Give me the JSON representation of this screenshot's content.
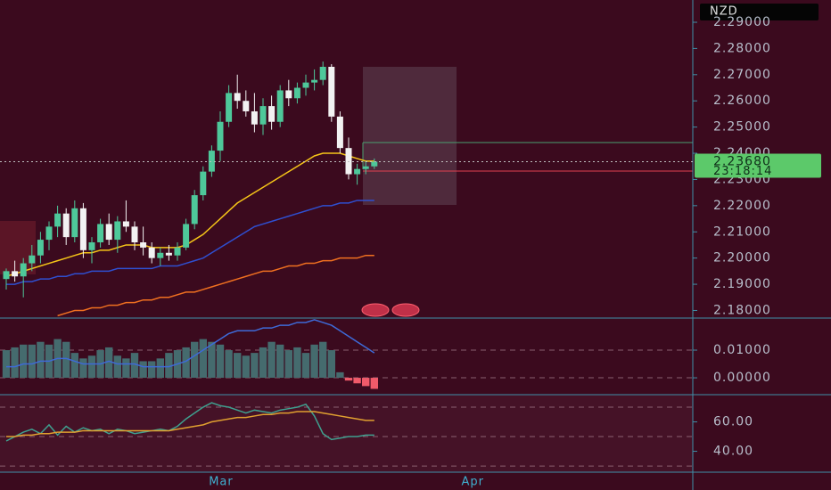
{
  "symbol": "NZD",
  "chart_data": [
    {
      "type": "candlestick",
      "categories": [
        null,
        null,
        null,
        null,
        null,
        null,
        null,
        null,
        null,
        null,
        null,
        null,
        null,
        null,
        null,
        null,
        null,
        null,
        null,
        null,
        null,
        null,
        null,
        null,
        null,
        null,
        null,
        null,
        null,
        null,
        null,
        null,
        null,
        null,
        null,
        null,
        null,
        null,
        null,
        null,
        null,
        null,
        null,
        null
      ],
      "xticks": [
        {
          "value": 25.1,
          "label": "Mar"
        },
        {
          "value": 54.5,
          "label": "Apr"
        }
      ],
      "open": [
        2.192,
        2.195,
        2.193,
        2.198,
        2.201,
        2.207,
        2.212,
        2.217,
        2.208,
        2.219,
        2.203,
        2.206,
        2.213,
        2.207,
        2.214,
        2.212,
        2.206,
        2.204,
        2.2,
        2.202,
        2.201,
        2.204,
        2.213,
        2.224,
        2.233,
        2.241,
        2.252,
        2.263,
        2.26,
        2.256,
        2.251,
        2.258,
        2.252,
        2.264,
        2.261,
        2.265,
        2.267,
        2.268,
        2.273,
        2.254,
        2.242,
        2.232,
        2.234,
        2.235
      ],
      "high": [
        2.196,
        2.199,
        2.2,
        2.205,
        2.21,
        2.214,
        2.22,
        2.219,
        2.222,
        2.221,
        2.208,
        2.215,
        2.217,
        2.216,
        2.222,
        2.214,
        2.212,
        2.206,
        2.204,
        2.205,
        2.206,
        2.215,
        2.226,
        2.235,
        2.243,
        2.256,
        2.266,
        2.27,
        2.264,
        2.263,
        2.261,
        2.262,
        2.266,
        2.268,
        2.267,
        2.27,
        2.272,
        2.275,
        2.274,
        2.256,
        2.246,
        2.236,
        2.237,
        2.238
      ],
      "low": [
        2.188,
        2.191,
        2.185,
        2.195,
        2.198,
        2.203,
        2.208,
        2.205,
        2.206,
        2.2,
        2.198,
        2.204,
        2.205,
        2.202,
        2.21,
        2.203,
        2.201,
        2.198,
        2.197,
        2.199,
        2.199,
        2.203,
        2.211,
        2.222,
        2.231,
        2.237,
        2.25,
        2.257,
        2.254,
        2.248,
        2.247,
        2.249,
        2.25,
        2.258,
        2.259,
        2.262,
        2.264,
        2.266,
        2.252,
        2.24,
        2.23,
        2.228,
        2.232,
        2.234
      ],
      "close": [
        2.195,
        2.193,
        2.198,
        2.201,
        2.207,
        2.212,
        2.217,
        2.208,
        2.219,
        2.203,
        2.206,
        2.213,
        2.207,
        2.214,
        2.212,
        2.206,
        2.204,
        2.2,
        2.202,
        2.201,
        2.204,
        2.213,
        2.224,
        2.233,
        2.241,
        2.252,
        2.263,
        2.26,
        2.256,
        2.251,
        2.258,
        2.252,
        2.264,
        2.261,
        2.265,
        2.267,
        2.268,
        2.273,
        2.254,
        2.242,
        2.232,
        2.234,
        2.235,
        2.2368
      ],
      "up_color": "#4ec89a",
      "down_color": "#f2f2f2",
      "series": [
        {
          "color": "#f5c518",
          "values": [
            2.193,
            2.194,
            2.195,
            2.196,
            2.197,
            2.198,
            2.199,
            2.2,
            2.201,
            2.202,
            2.202,
            2.203,
            2.203,
            2.204,
            2.205,
            2.205,
            2.205,
            2.204,
            2.204,
            2.204,
            2.204,
            2.205,
            2.207,
            2.209,
            2.212,
            2.215,
            2.218,
            2.221,
            2.223,
            2.225,
            2.227,
            2.229,
            2.231,
            2.233,
            2.235,
            2.237,
            2.239,
            2.24,
            2.24,
            2.24,
            2.239,
            2.238,
            2.237,
            2.237
          ]
        },
        {
          "color": "#2f4fd0",
          "values": [
            2.19,
            2.19,
            2.191,
            2.191,
            2.192,
            2.192,
            2.193,
            2.193,
            2.194,
            2.194,
            2.195,
            2.195,
            2.195,
            2.196,
            2.196,
            2.196,
            2.196,
            2.196,
            2.197,
            2.197,
            2.197,
            2.198,
            2.199,
            2.2,
            2.202,
            2.204,
            2.206,
            2.208,
            2.21,
            2.212,
            2.213,
            2.214,
            2.215,
            2.216,
            2.217,
            2.218,
            2.219,
            2.22,
            2.22,
            2.221,
            2.221,
            2.222,
            2.222,
            2.222
          ]
        },
        {
          "color": "#f07020",
          "values": [
            null,
            null,
            null,
            null,
            null,
            null,
            2.178,
            2.179,
            2.18,
            2.18,
            2.181,
            2.181,
            2.182,
            2.182,
            2.183,
            2.183,
            2.184,
            2.184,
            2.185,
            2.185,
            2.186,
            2.187,
            2.187,
            2.188,
            2.189,
            2.19,
            2.191,
            2.192,
            2.193,
            2.194,
            2.195,
            2.195,
            2.196,
            2.197,
            2.197,
            2.198,
            2.198,
            2.199,
            2.199,
            2.2,
            2.2,
            2.2,
            2.201,
            2.201
          ]
        }
      ],
      "ylim": [
        2.1771,
        2.2985
      ],
      "yticks": [
        {
          "value": 2.29,
          "label": "2.29000"
        },
        {
          "value": 2.28,
          "label": "2.28000"
        },
        {
          "value": 2.27,
          "label": "2.27000"
        },
        {
          "value": 2.26,
          "label": "2.26000"
        },
        {
          "value": 2.25,
          "label": "2.25000"
        },
        {
          "value": 2.24,
          "label": "2.24000"
        },
        {
          "value": 2.23,
          "label": "2.23000"
        },
        {
          "value": 2.22,
          "label": "2.22000"
        },
        {
          "value": 2.21,
          "label": "2.21000"
        },
        {
          "value": 2.2,
          "label": "2.20000"
        },
        {
          "value": 2.19,
          "label": "2.19000"
        },
        {
          "value": 2.18,
          "label": "2.18000"
        }
      ],
      "last_price": {
        "value": 2.2368,
        "label": "2.23680"
      },
      "countdown": "23:18:14",
      "price_color": "#5cc96a"
    },
    {
      "type": "macd",
      "values": [
        0.01,
        0.011,
        0.012,
        0.012,
        0.013,
        0.012,
        0.014,
        0.013,
        0.009,
        0.007,
        0.008,
        0.01,
        0.011,
        0.008,
        0.007,
        0.009,
        0.006,
        0.006,
        0.007,
        0.009,
        0.01,
        0.011,
        0.013,
        0.014,
        0.013,
        0.012,
        0.01,
        0.009,
        0.008,
        0.009,
        0.011,
        0.013,
        0.012,
        0.01,
        0.011,
        0.009,
        0.012,
        0.013,
        0.01,
        0.002,
        -0.001,
        -0.002,
        -0.003,
        -0.004
      ],
      "positive_color": "#456b6e",
      "negative_color": "#f05a6a",
      "series": [
        {
          "color": "#3e6ad8",
          "values": [
            0.004,
            0.004,
            0.005,
            0.005,
            0.006,
            0.006,
            0.007,
            0.007,
            0.006,
            0.005,
            0.005,
            0.005,
            0.006,
            0.005,
            0.005,
            0.005,
            0.004,
            0.004,
            0.004,
            0.004,
            0.005,
            0.006,
            0.008,
            0.01,
            0.012,
            0.014,
            0.016,
            0.017,
            0.017,
            0.017,
            0.018,
            0.018,
            0.019,
            0.019,
            0.02,
            0.02,
            0.021,
            0.02,
            0.019,
            0.017,
            0.015,
            0.013,
            0.011,
            0.009
          ]
        }
      ],
      "ylim": [
        -0.0061,
        0.0216
      ],
      "yticks": [
        {
          "value": 0.01,
          "label": "0.01000"
        },
        {
          "value": 0,
          "label": "0.00000"
        }
      ]
    },
    {
      "type": "rsi",
      "series": [
        {
          "color": "#3fa08f",
          "values": [
            47,
            50,
            53,
            55,
            52,
            58,
            51,
            57,
            53,
            56,
            54,
            55,
            52,
            55,
            54,
            52,
            53,
            54,
            55,
            54,
            57,
            62,
            66,
            70,
            73,
            71,
            70,
            68,
            66,
            68,
            67,
            66,
            68,
            69,
            70,
            72,
            64,
            52,
            48,
            49,
            50,
            50,
            51,
            51
          ]
        },
        {
          "color": "#e0a030",
          "values": [
            50,
            50,
            51,
            51,
            52,
            52,
            53,
            53,
            53,
            54,
            54,
            54,
            54,
            54,
            54,
            54,
            54,
            54,
            54,
            54,
            55,
            56,
            57,
            58,
            60,
            61,
            62,
            63,
            63,
            64,
            65,
            65,
            66,
            66,
            67,
            67,
            67,
            66,
            65,
            64,
            63,
            62,
            61,
            61
          ]
        }
      ],
      "levels": [
        70,
        50,
        30
      ],
      "ylim": [
        25.8,
        78.5
      ],
      "yticks": [
        {
          "value": 60,
          "label": "60.00"
        },
        {
          "value": 40,
          "label": "40.00"
        }
      ]
    }
  ]
}
